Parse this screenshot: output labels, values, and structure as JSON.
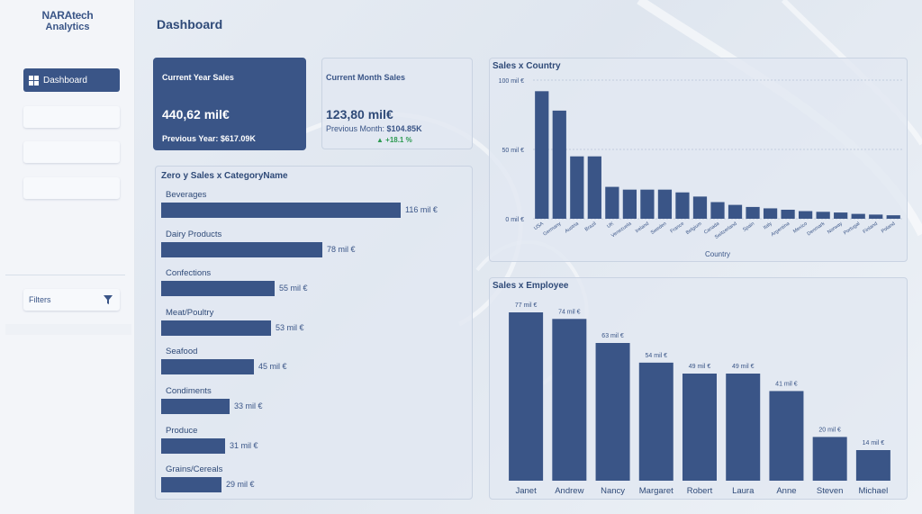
{
  "brand": {
    "line1": "NARAtech",
    "line2": "Analytics"
  },
  "nav": {
    "active_label": "Dashboard",
    "filters_label": "Filters"
  },
  "page": {
    "title": "Dashboard"
  },
  "kpi_current_year": {
    "label": "Current Year Sales",
    "value": "440,62 mil€",
    "sub": "Previous Year: $617.09K"
  },
  "kpi_current_month": {
    "label": "Current Month Sales",
    "value": "123,80 mil€",
    "sub_prefix": "Previous Month: ",
    "sub_value": "$104.85K",
    "trend": "▲ +18.1 %",
    "trend_color": "#2e9a52"
  },
  "colors": {
    "accent": "#3a5587",
    "card_bg": "#e2e8f2"
  },
  "chart_data": [
    {
      "type": "bar",
      "orientation": "horizontal",
      "title": "Zero y Sales x CategoryName",
      "categories": [
        "Beverages",
        "Dairy Products",
        "Confections",
        "Meat/Poultry",
        "Seafood",
        "Condiments",
        "Produce",
        "Grains/Cereals"
      ],
      "values": [
        116,
        78,
        55,
        53,
        45,
        33,
        31,
        29
      ],
      "value_labels": [
        "116 mil €",
        "78 mil €",
        "55 mil €",
        "53 mil €",
        "45 mil €",
        "33 mil €",
        "31 mil €",
        "29 mil €"
      ],
      "xlim": [
        0,
        116
      ]
    },
    {
      "type": "bar",
      "title": "Sales x Country",
      "xlabel": "Country",
      "ylabel": "",
      "categories": [
        "USA",
        "Germany",
        "Austria",
        "Brazil",
        "UK",
        "Venezuela",
        "Ireland",
        "Sweden",
        "France",
        "Belgium",
        "Canada",
        "Switzerland",
        "Spain",
        "Italy",
        "Argentina",
        "Mexico",
        "Denmark",
        "Norway",
        "Portugal",
        "Finland",
        "Poland"
      ],
      "values": [
        92,
        78,
        45,
        45,
        23,
        21,
        21,
        21,
        19,
        16,
        12,
        10,
        8.5,
        7.5,
        6.5,
        5.5,
        5,
        4.5,
        3.5,
        3,
        2.5
      ],
      "ylim": [
        0,
        100
      ],
      "yticks": [
        0,
        50,
        100
      ],
      "ytick_labels": [
        "0 mil €",
        "50 mil €",
        "100 mil €"
      ],
      "grid": true
    },
    {
      "type": "bar",
      "title": "Sales x Employee",
      "categories": [
        "Janet",
        "Andrew",
        "Nancy",
        "Margaret",
        "Robert",
        "Laura",
        "Anne",
        "Steven",
        "Michael"
      ],
      "values": [
        77,
        74,
        63,
        54,
        49,
        49,
        41,
        20,
        14
      ],
      "value_labels": [
        "77 mil €",
        "74 mil €",
        "63 mil €",
        "54 mil €",
        "49 mil €",
        "49 mil €",
        "41 mil €",
        "20 mil €",
        "14 mil €"
      ],
      "ylim": [
        0,
        77
      ]
    }
  ]
}
